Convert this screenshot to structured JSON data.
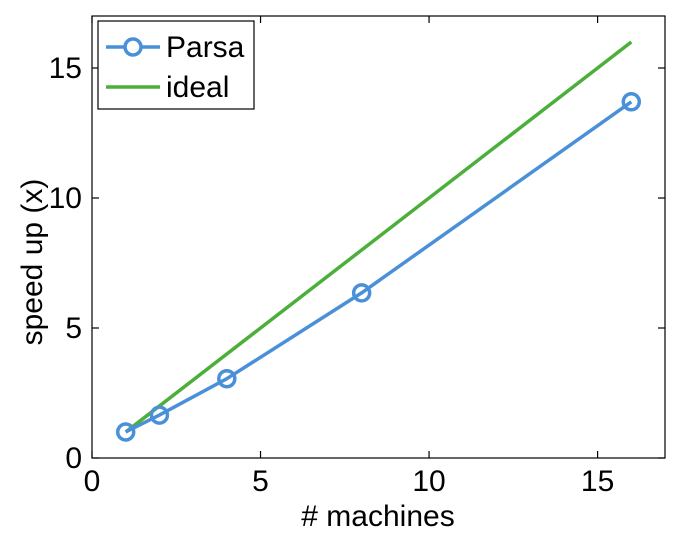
{
  "chart_data": {
    "type": "line",
    "title": "",
    "xlabel": "# machines",
    "ylabel": "speed up (x)",
    "xlim": [
      0,
      17
    ],
    "ylim": [
      0,
      17
    ],
    "xticks": [
      0,
      5,
      10,
      15
    ],
    "yticks": [
      0,
      5,
      10,
      15
    ],
    "grid": false,
    "legend_position": "top-left",
    "series": [
      {
        "name": "Parsa",
        "x": [
          1,
          2,
          4,
          8,
          16
        ],
        "y": [
          1.0,
          1.65,
          3.05,
          6.35,
          13.7
        ],
        "color": "#4a90d9",
        "marker": "circle"
      },
      {
        "name": "ideal",
        "x": [
          1,
          16
        ],
        "y": [
          1,
          16
        ],
        "color": "#4caf3a",
        "marker": "none"
      }
    ]
  }
}
